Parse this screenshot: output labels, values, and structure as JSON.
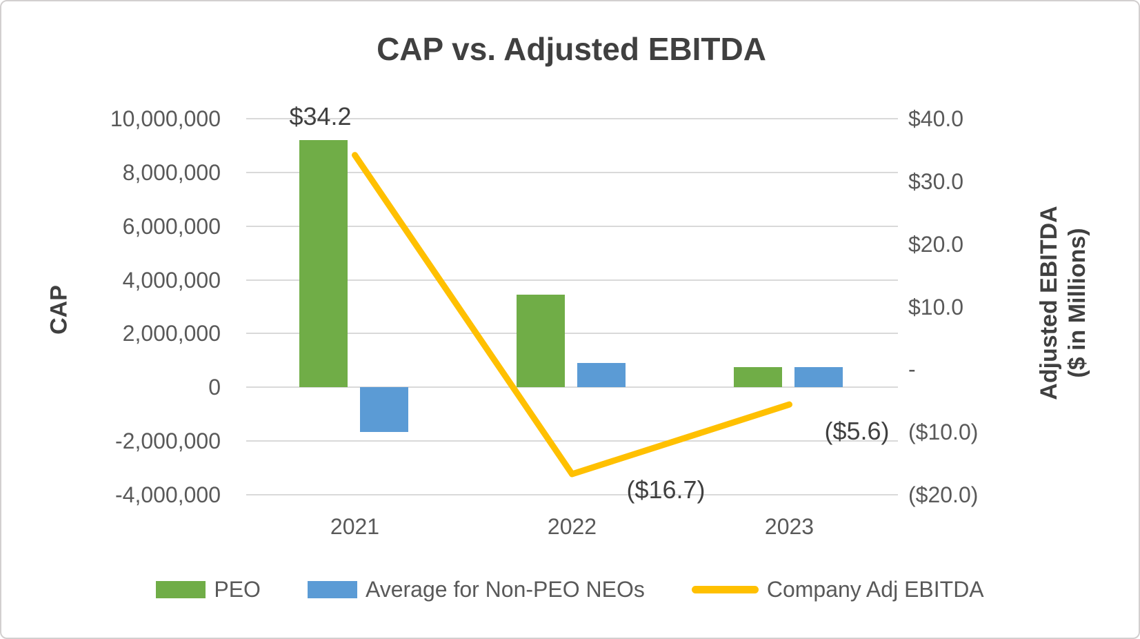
{
  "title": "CAP vs. Adjusted EBITDA",
  "chart_data": {
    "type": "combo",
    "title": "CAP vs. Adjusted EBITDA",
    "categories": [
      "2021",
      "2022",
      "2023"
    ],
    "series": [
      {
        "name": "PEO",
        "type": "bar",
        "axis": "left",
        "color": "#70AD47",
        "values": [
          9200000,
          3450000,
          750000
        ]
      },
      {
        "name": "Average for Non-PEO NEOs",
        "type": "bar",
        "axis": "left",
        "color": "#5B9BD5",
        "values": [
          -1650000,
          900000,
          750000
        ]
      },
      {
        "name": "Company Adj EBITDA",
        "type": "line",
        "axis": "right",
        "color": "#FFC000",
        "values": [
          34.2,
          -16.7,
          -5.6
        ],
        "data_labels": [
          "$34.2",
          "($16.7)",
          "($5.6)"
        ]
      }
    ],
    "left_axis": {
      "title": "CAP",
      "range": [
        -4000000,
        10000000
      ],
      "major_unit": 2000000,
      "ticks": [
        "10,000,000",
        "8,000,000",
        "6,000,000",
        "4,000,000",
        "2,000,000",
        "0",
        "-2,000,000",
        "-4,000,000"
      ]
    },
    "right_axis": {
      "title_lines": [
        "Adjusted EBITDA",
        "($ in Millions)"
      ],
      "range": [
        -20,
        40
      ],
      "major_unit": 10,
      "ticks": [
        "$40.0",
        "$30.0",
        "$20.0",
        "$10.0",
        "-",
        "($10.0)",
        "($20.0)"
      ]
    },
    "grid": true,
    "legend_position": "bottom",
    "colors": {
      "grid": "#D9D9D9",
      "tick_text": "#595959",
      "title_text": "#404040",
      "background": "#FFFFFF"
    }
  }
}
